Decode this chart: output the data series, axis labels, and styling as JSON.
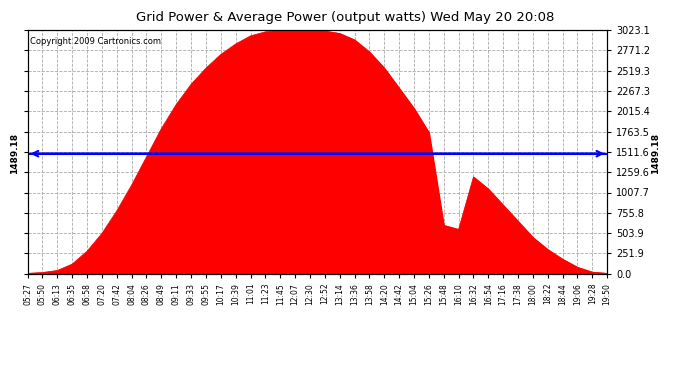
{
  "title": "Grid Power & Average Power (output watts) Wed May 20 20:08",
  "copyright": "Copyright 2009 Cartronics.com",
  "avg_power": 1489.18,
  "y_max": 3023.1,
  "y_ticks": [
    0.0,
    251.9,
    503.9,
    755.8,
    1007.7,
    1259.6,
    1511.6,
    1763.5,
    2015.4,
    2267.3,
    2519.3,
    2771.2,
    3023.1
  ],
  "x_labels": [
    "05:27",
    "05:50",
    "06:13",
    "06:35",
    "06:58",
    "07:20",
    "07:42",
    "08:04",
    "08:26",
    "08:49",
    "09:11",
    "09:33",
    "09:55",
    "10:17",
    "10:39",
    "11:01",
    "11:23",
    "11:45",
    "12:07",
    "12:30",
    "12:52",
    "13:14",
    "13:36",
    "13:58",
    "14:20",
    "14:42",
    "15:04",
    "15:26",
    "15:48",
    "16:10",
    "16:32",
    "16:54",
    "17:16",
    "17:38",
    "18:00",
    "18:22",
    "18:44",
    "19:06",
    "19:28",
    "19:50"
  ],
  "fill_color": "#FF0000",
  "line_color": "#FF0000",
  "avg_line_color": "#0000FF",
  "bg_color": "#FFFFFF",
  "plot_bg_color": "#FFFFFF",
  "grid_color": "#AAAAAA",
  "title_color": "#000000",
  "num_points": 40,
  "curve_values": [
    5,
    15,
    40,
    120,
    280,
    500,
    780,
    1100,
    1450,
    1800,
    2100,
    2350,
    2550,
    2720,
    2850,
    2950,
    3000,
    3015,
    3023,
    3020,
    3010,
    2980,
    2900,
    2750,
    2550,
    2300,
    2050,
    1750,
    600,
    550,
    1200,
    1050,
    850,
    650,
    450,
    300,
    180,
    80,
    20,
    5
  ]
}
